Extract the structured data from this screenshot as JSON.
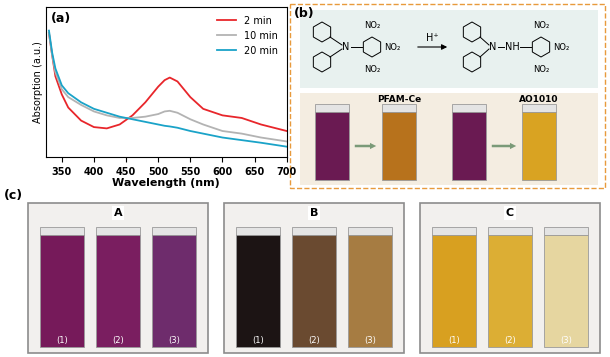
{
  "chart_data": {
    "type": "line",
    "annotations": [
      "(a)"
    ],
    "x_label": "Wavelength (nm)",
    "y_label": "Absorption (a.u.)",
    "x": [
      330,
      335,
      340,
      350,
      360,
      380,
      400,
      420,
      440,
      460,
      480,
      500,
      510,
      518,
      530,
      550,
      570,
      600,
      630,
      660,
      700
    ],
    "series": [
      {
        "name": "2 min",
        "color": "#e8262b",
        "values": [
          0.95,
          0.78,
          0.62,
          0.48,
          0.38,
          0.28,
          0.23,
          0.22,
          0.25,
          0.32,
          0.42,
          0.54,
          0.59,
          0.61,
          0.58,
          0.46,
          0.37,
          0.32,
          0.3,
          0.25,
          0.2
        ]
      },
      {
        "name": "10 min",
        "color": "#b3b3b3",
        "values": [
          0.95,
          0.78,
          0.65,
          0.52,
          0.46,
          0.4,
          0.35,
          0.32,
          0.3,
          0.3,
          0.31,
          0.33,
          0.35,
          0.355,
          0.34,
          0.29,
          0.25,
          0.2,
          0.18,
          0.15,
          0.12
        ]
      },
      {
        "name": "20 min",
        "color": "#1aa3c8",
        "values": [
          0.97,
          0.8,
          0.68,
          0.55,
          0.49,
          0.42,
          0.37,
          0.34,
          0.31,
          0.29,
          0.27,
          0.25,
          0.24,
          0.235,
          0.225,
          0.2,
          0.18,
          0.15,
          0.13,
          0.11,
          0.08
        ]
      }
    ],
    "xlim": [
      325,
      700
    ],
    "xticks": [
      350,
      400,
      450,
      500,
      550,
      600,
      650,
      700
    ],
    "ylim": [
      0,
      1.15
    ],
    "yticks": [],
    "tick_labels": "x",
    "legend": "upper right"
  },
  "panel_b": {
    "label": "(b)",
    "reaction": {
      "reagent": "H⁺",
      "reactant": {
        "amine": "N",
        "groups": [
          "NO₂",
          "NO₂",
          "NO₂"
        ]
      },
      "product": {
        "amine": "N",
        "hydrazine": "NH",
        "groups": [
          "NO₂",
          "NO₂",
          "NO₂"
        ]
      }
    },
    "steps": [
      {
        "from_color": "#6a1a52",
        "to_color": "#b7721c",
        "to_label": "PFAM-Ce"
      },
      {
        "from_color": "#6a1a52",
        "to_color": "#d9a322",
        "to_label": "AO1010"
      }
    ]
  },
  "panel_c": {
    "label": "(c)",
    "groups": [
      {
        "name": "A",
        "vials": [
          {
            "label": "(1)",
            "color": "#761a5a"
          },
          {
            "label": "(2)",
            "color": "#7a1e60"
          },
          {
            "label": "(3)",
            "color": "#6e2c6c"
          }
        ]
      },
      {
        "name": "B",
        "vials": [
          {
            "label": "(1)",
            "color": "#1c1414"
          },
          {
            "label": "(2)",
            "color": "#6a4a30"
          },
          {
            "label": "(3)",
            "color": "#a67c42"
          }
        ]
      },
      {
        "name": "C",
        "vials": [
          {
            "label": "(1)",
            "color": "#d8a020"
          },
          {
            "label": "(2)",
            "color": "#dcae34"
          },
          {
            "label": "(3)",
            "color": "#e6d6a0"
          }
        ]
      }
    ]
  }
}
